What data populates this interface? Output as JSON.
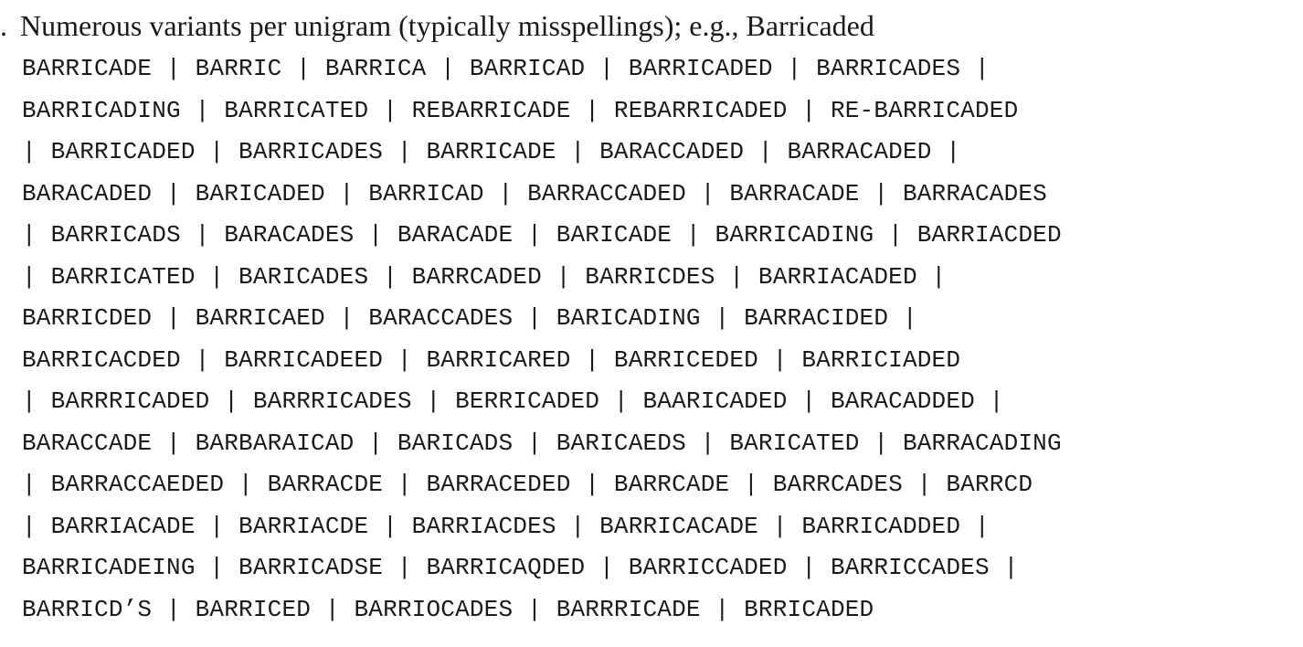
{
  "item": {
    "bullet": ".",
    "text": "Numerous variants per unigram (typically misspellings); e.g., Barricaded"
  },
  "variant_lines": [
    "BARRICADE | BARRIC | BARRICA | BARRICAD | BARRICADED | BARRICADES |",
    "BARRICADING | BARRICATED | REBARRICADE | REBARRICADED | RE-BARRICADED",
    "| BARRICADED | BARRICADES | BARRICADE | BARACCADED | BARRACADED |",
    "BARACADED | BARICADED | BARRICAD | BARRACCADED | BARRACADE | BARRACADES",
    "| BARRICADS | BARACADES | BARACADE | BARICADE | BARRICADING | BARRIACDED",
    "| BARRICATED | BARICADES | BARRCADED | BARRICDES | BARRIACADED |",
    "BARRICDED | BARRICAED | BARACCADES | BARICADING | BARRACIDED |",
    "BARRICACDED | BARRICADEED | BARRICARED | BARRICEDED | BARRICIADED",
    "| BARRRICADED | BARRRICADES | BERRICADED | BAARICADED | BARACADDED |",
    "BARACCADE | BARBARAICAD | BARICADS | BARICAEDS | BARICATED | BARRACADING",
    "| BARRACCAEDED | BARRACDE | BARRACEDED | BARRCADE | BARRCADES | BARRCD",
    "| BARRIACADE | BARRIACDE | BARRIACDES | BARRICACADE | BARRICADDED |",
    "BARRICADEING | BARRICADSE | BARRICAQDED | BARRICCADED | BARRICCADES |",
    "BARRICD’S | BARRICED | BARRIOCADES | BARRRICADE | BRRICADED"
  ]
}
